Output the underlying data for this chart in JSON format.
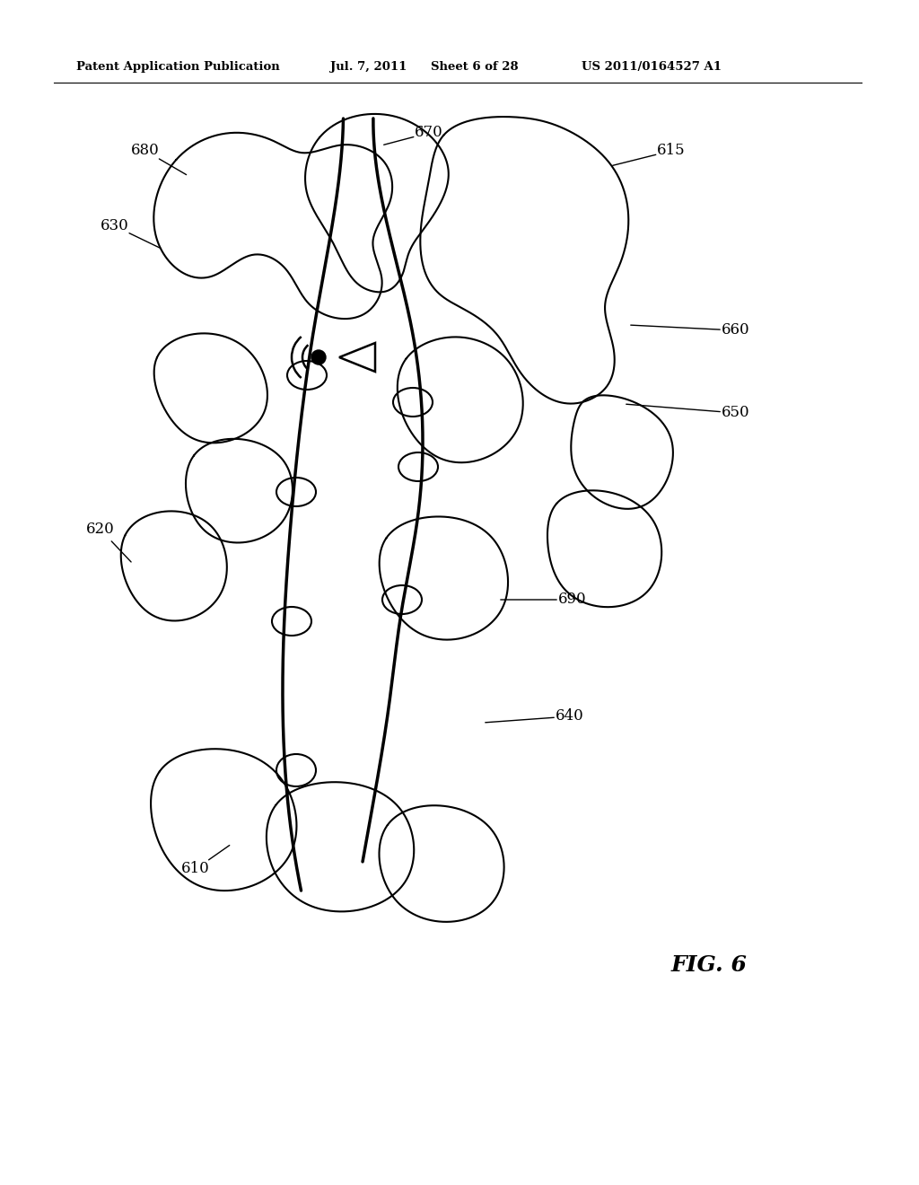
{
  "header_left": "Patent Application Publication",
  "header_mid1": "Jul. 7, 2011",
  "header_mid2": "Sheet 6 of 28",
  "header_right": "US 2011/0164527 A1",
  "fig_label": "FIG. 6",
  "background_color": "#ffffff",
  "line_color": "#000000"
}
